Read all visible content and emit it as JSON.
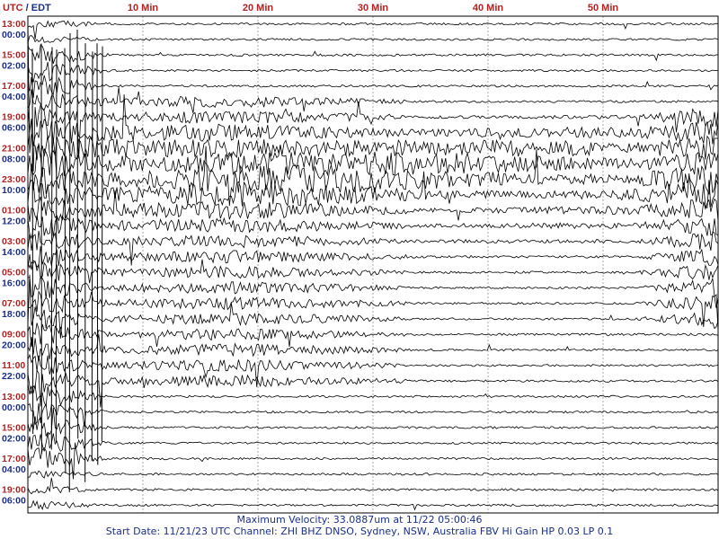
{
  "chart_data": {
    "type": "line",
    "header": {
      "utc_label": "UTC",
      "separator": " / ",
      "local_label": "EDT"
    },
    "minute_ticks": [
      {
        "minute": 10,
        "label": "10 Min"
      },
      {
        "minute": 20,
        "label": "20 Min"
      },
      {
        "minute": 30,
        "label": "30 Min"
      },
      {
        "minute": 40,
        "label": "40 Min"
      },
      {
        "minute": 50,
        "label": "50 Min"
      }
    ],
    "xlim": [
      0,
      60
    ],
    "row_count": 32,
    "utc_labels": [
      "13:00",
      "15:00",
      "17:00",
      "19:00",
      "21:00",
      "23:00",
      "01:00",
      "03:00",
      "05:00",
      "07:00",
      "09:00",
      "11:00",
      "13:00",
      "15:00",
      "17:00",
      "19:00"
    ],
    "local_labels": [
      "00:00",
      "02:00",
      "04:00",
      "06:00",
      "08:00",
      "10:00",
      "12:00",
      "14:00",
      "16:00",
      "18:00",
      "20:00",
      "22:00",
      "00:00",
      "02:00",
      "04:00",
      "06:00"
    ],
    "colors": {
      "utc": "#b22222",
      "local": "#1a2f8a",
      "trace": "#000000",
      "grid": "#a8a8a8"
    },
    "grid": true,
    "footer": {
      "line1": "Maximum Velocity: 33.0887um at 11/22 05:00:46",
      "line2": "Start Date: 11/21/23 UTC Channel: ZHI  BHZ  DNSO, Sydney, NSW, Australia  FBV Hi Gain HP 0.03  LP 0.1"
    }
  }
}
